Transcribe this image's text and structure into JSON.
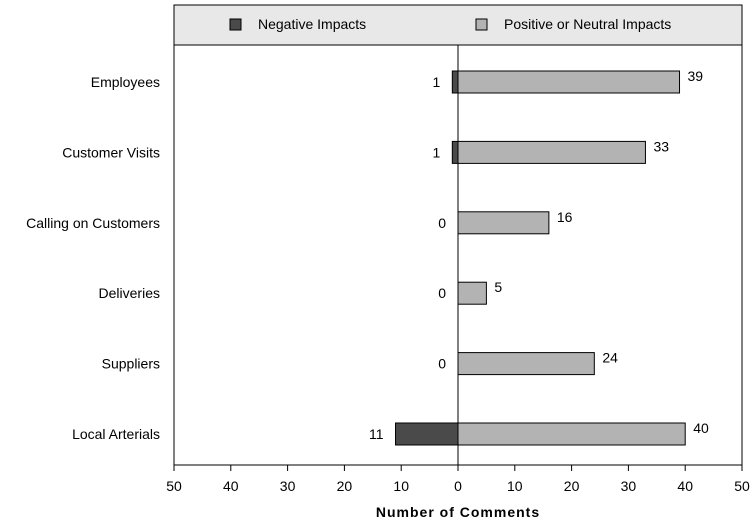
{
  "chart_data": {
    "type": "bar",
    "orientation": "horizontal",
    "layout": "diverging",
    "categories": [
      "Employees",
      "Customer Visits",
      "Calling on Customers",
      "Deliveries",
      "Suppliers",
      "Local Arterials"
    ],
    "series": [
      {
        "name": "Negative Impacts",
        "values": [
          1,
          1,
          0,
          0,
          0,
          11
        ],
        "color": "#4a4a4a",
        "direction": "left"
      },
      {
        "name": "Positive or Neutral Impacts",
        "values": [
          39,
          33,
          16,
          5,
          24,
          40
        ],
        "color": "#b3b3b3",
        "direction": "right"
      }
    ],
    "xlabel": "Number of Comments",
    "xlim": [
      -50,
      50
    ],
    "xticks": [
      -50,
      -40,
      -30,
      -20,
      -10,
      0,
      10,
      20,
      30,
      40,
      50
    ],
    "xtick_labels": [
      "50",
      "40",
      "30",
      "20",
      "10",
      "0",
      "10",
      "20",
      "30",
      "40",
      "50"
    ],
    "grid": false,
    "legend_position": "top"
  }
}
